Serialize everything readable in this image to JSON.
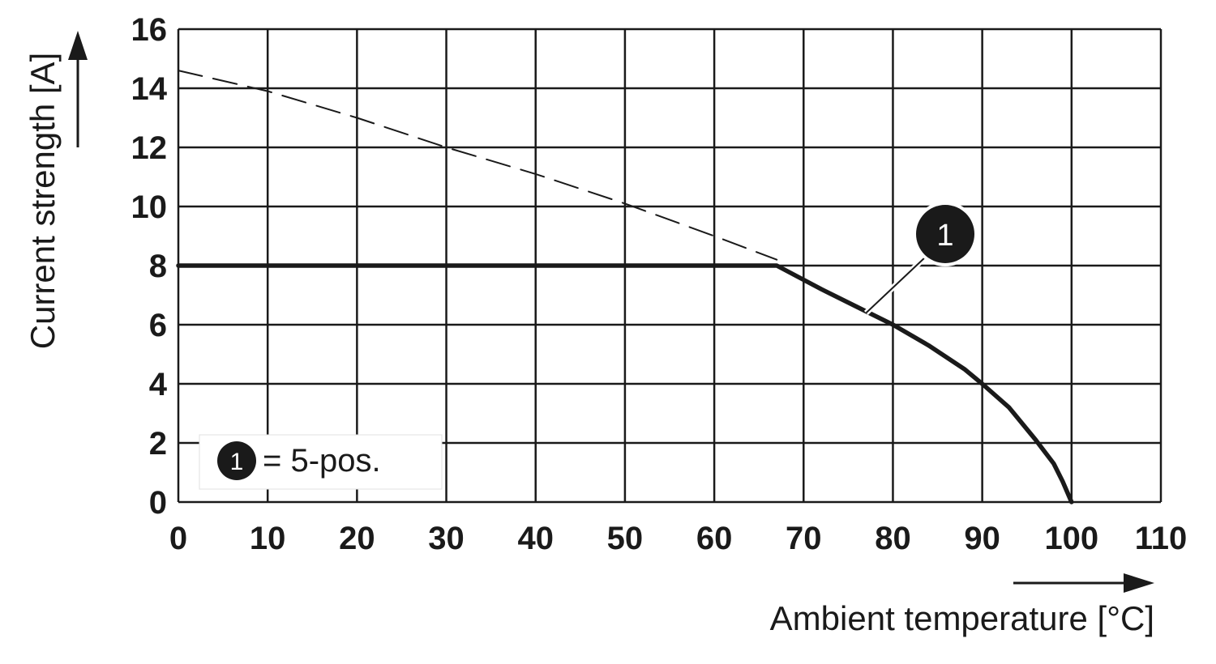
{
  "chart_data": {
    "type": "line",
    "xlabel": "Ambient temperature [°C]",
    "ylabel": "Current strength [A]",
    "xlim": [
      0,
      110
    ],
    "ylim": [
      0,
      16
    ],
    "x_ticks": [
      0,
      10,
      20,
      30,
      40,
      50,
      60,
      70,
      80,
      90,
      100,
      110
    ],
    "y_ticks": [
      0,
      2,
      4,
      6,
      8,
      10,
      12,
      14,
      16
    ],
    "grid": true,
    "series": [
      {
        "name": "5-pos.",
        "marker_label": "1",
        "style": "solid",
        "color": "#1a1a1a",
        "x": [
          0,
          67,
          72,
          76,
          80,
          84,
          88,
          90,
          93,
          96,
          98,
          99,
          100
        ],
        "y": [
          8,
          8,
          7.2,
          6.6,
          6.0,
          5.3,
          4.5,
          4.0,
          3.2,
          2.1,
          1.3,
          0.7,
          0
        ]
      },
      {
        "name": "",
        "style": "dashed",
        "color": "#1a1a1a",
        "x": [
          0,
          10,
          20,
          30,
          40,
          50,
          60,
          67
        ],
        "y": [
          14.6,
          13.9,
          13.0,
          12.0,
          11.1,
          10.1,
          9.0,
          8.2
        ]
      }
    ],
    "annotation": {
      "label": "1",
      "x": 77,
      "y": 6.4
    },
    "legend": {
      "position": "bottom-left",
      "marker": "1",
      "text": "= 5-pos."
    }
  }
}
